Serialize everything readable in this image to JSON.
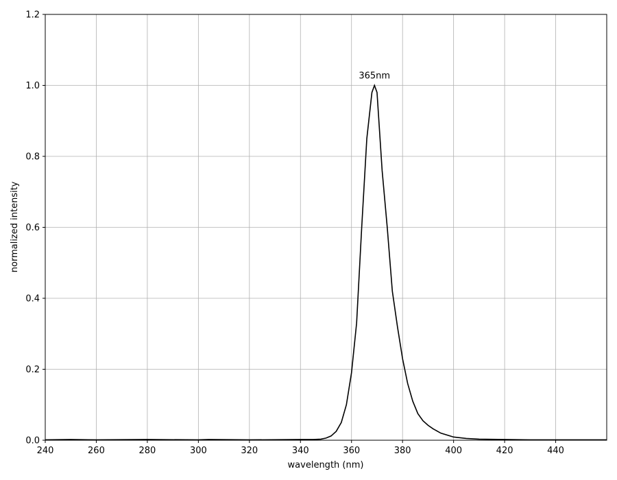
{
  "chart_data": {
    "type": "line",
    "xlabel": "wavelength (nm)",
    "ylabel": "normalized intensity",
    "annotation": "365nm",
    "x": [
      240,
      250,
      260,
      280,
      300,
      304,
      320,
      340,
      345,
      348,
      350,
      352,
      354,
      356,
      358,
      360,
      362,
      364,
      366,
      368,
      369,
      370,
      372,
      374,
      376,
      378,
      380,
      382,
      384,
      386,
      388,
      390,
      392,
      395,
      400,
      405,
      410,
      420,
      430,
      440,
      450,
      460
    ],
    "series": [
      {
        "color": "#000000",
        "values": [
          0.001,
          0.002,
          0.001,
          0.002,
          0.001,
          0.002,
          0.001,
          0.002,
          0.002,
          0.003,
          0.006,
          0.012,
          0.025,
          0.05,
          0.1,
          0.19,
          0.33,
          0.6,
          0.85,
          0.98,
          1.0,
          0.98,
          0.76,
          0.6,
          0.42,
          0.32,
          0.23,
          0.16,
          0.11,
          0.075,
          0.055,
          0.042,
          0.032,
          0.02,
          0.009,
          0.005,
          0.003,
          0.002,
          0.001,
          0.001,
          0.001,
          0.001
        ]
      }
    ],
    "xlim": [
      240,
      460
    ],
    "ylim": [
      0,
      1.2
    ],
    "xticks": [
      240,
      260,
      280,
      300,
      320,
      340,
      360,
      380,
      400,
      420,
      440
    ],
    "yticks": [
      {
        "value": 0,
        "label": "0.0"
      },
      0.2,
      0.4,
      0.6,
      0.8,
      {
        "value": 1,
        "label": "1.0"
      },
      1.2
    ],
    "grid": true
  }
}
